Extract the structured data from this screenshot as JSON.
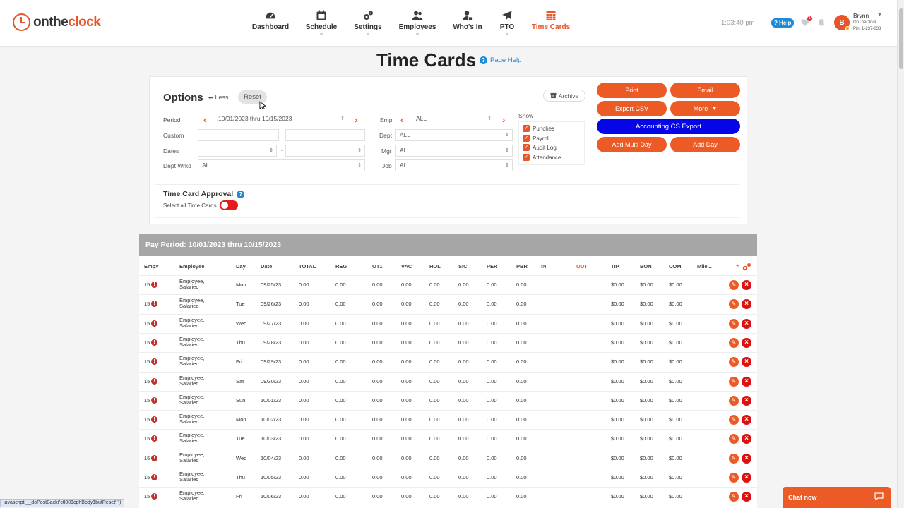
{
  "brand": {
    "logo_on": "on",
    "logo_the": "the",
    "logo_clock": "clock"
  },
  "nav": [
    {
      "label": "Dashboard",
      "icon": "dashboard-icon",
      "active": false
    },
    {
      "label": "Schedule",
      "icon": "calendar-icon",
      "active": false
    },
    {
      "label": "Settings",
      "icon": "gears-icon",
      "active": false
    },
    {
      "label": "Employees",
      "icon": "users-icon",
      "active": false
    },
    {
      "label": "Who's In",
      "icon": "user-lock-icon",
      "active": false
    },
    {
      "label": "PTO",
      "icon": "plane-icon",
      "active": false
    },
    {
      "label": "Time Cards",
      "icon": "table-icon",
      "active": true
    }
  ],
  "header": {
    "time": "1:03:40 pm",
    "help": "? Help",
    "notif_count": "1",
    "avatar_initial": "B",
    "user_name": "Brynn",
    "user_org": "OnTheClock",
    "user_pin": "Pin: 1-237-033"
  },
  "page": {
    "title": "Time Cards",
    "help_link": "Page Help"
  },
  "options": {
    "title": "Options",
    "less_label": "Less",
    "reset_label": "Reset",
    "archive_label": "Archive",
    "period_label": "Period",
    "period_value": "10/01/2023 thru 10/15/2023",
    "custom_label": "Custom",
    "dates_label": "Dates",
    "dept_wrkd_label": "Dept Wrkd",
    "dept_wrkd_value": "ALL",
    "emp_label": "Emp",
    "emp_value": "ALL",
    "dept_label": "Dept",
    "dept_value": "ALL",
    "mgr_label": "Mgr",
    "mgr_value": "ALL",
    "job_label": "Job",
    "job_value": "ALL",
    "show_label": "Show",
    "show_items": [
      "Punches",
      "Payroll",
      "Audit Log",
      "Attendance"
    ],
    "dash": "-"
  },
  "actions": {
    "print": "Print",
    "email": "Email",
    "export_csv": "Export CSV",
    "more": "More",
    "accounting": "Accounting CS Export",
    "add_multi_day": "Add Multi Day",
    "add_day": "Add Day"
  },
  "approval": {
    "title": "Time Card Approval",
    "select_all": "Select all Time Cards"
  },
  "table": {
    "pay_period": "Pay Period: 10/01/2023 thru 10/15/2023",
    "columns": [
      "Emp#",
      "Employee",
      "Day",
      "Date",
      "TOTAL",
      "REG",
      "OT1",
      "VAC",
      "HOL",
      "SIC",
      "PER",
      "PBR",
      "IN",
      "OUT",
      "TIP",
      "BON",
      "COM",
      "Mile..."
    ],
    "rows": [
      {
        "emp": "15",
        "name1": "Employee,",
        "name2": "Salaried",
        "day": "Mon",
        "date": "09/25/23"
      },
      {
        "emp": "15",
        "name1": "Employee,",
        "name2": "Salaried",
        "day": "Tue",
        "date": "09/26/23"
      },
      {
        "emp": "15",
        "name1": "Employee,",
        "name2": "Salaried",
        "day": "Wed",
        "date": "09/27/23"
      },
      {
        "emp": "15",
        "name1": "Employee,",
        "name2": "Salaried",
        "day": "Thu",
        "date": "09/28/23"
      },
      {
        "emp": "15",
        "name1": "Employee,",
        "name2": "Salaried",
        "day": "Fri",
        "date": "09/29/23"
      },
      {
        "emp": "15",
        "name1": "Employee,",
        "name2": "Salaried",
        "day": "Sat",
        "date": "09/30/23"
      },
      {
        "emp": "15",
        "name1": "Employee,",
        "name2": "Salaried",
        "day": "Sun",
        "date": "10/01/23"
      },
      {
        "emp": "15",
        "name1": "Employee,",
        "name2": "Salaried",
        "day": "Mon",
        "date": "10/02/23"
      },
      {
        "emp": "15",
        "name1": "Employee,",
        "name2": "Salaried",
        "day": "Tue",
        "date": "10/03/23"
      },
      {
        "emp": "15",
        "name1": "Employee,",
        "name2": "Salaried",
        "day": "Wed",
        "date": "10/04/23"
      },
      {
        "emp": "15",
        "name1": "Employee,",
        "name2": "Salaried",
        "day": "Thu",
        "date": "10/05/23"
      },
      {
        "emp": "15",
        "name1": "Employee,",
        "name2": "Salaried",
        "day": "Fri",
        "date": "10/06/23"
      }
    ],
    "hours_value": "0.00",
    "money_value": "$0.00"
  },
  "status_bar": "javascript:__doPostBack('ctl00$cphBody$butReset','')",
  "chat": {
    "label": "Chat now"
  },
  "colors": {
    "accent": "#ec5b26",
    "blue_button": "#0505e6",
    "pay_period_header": "#a6a6a6"
  }
}
